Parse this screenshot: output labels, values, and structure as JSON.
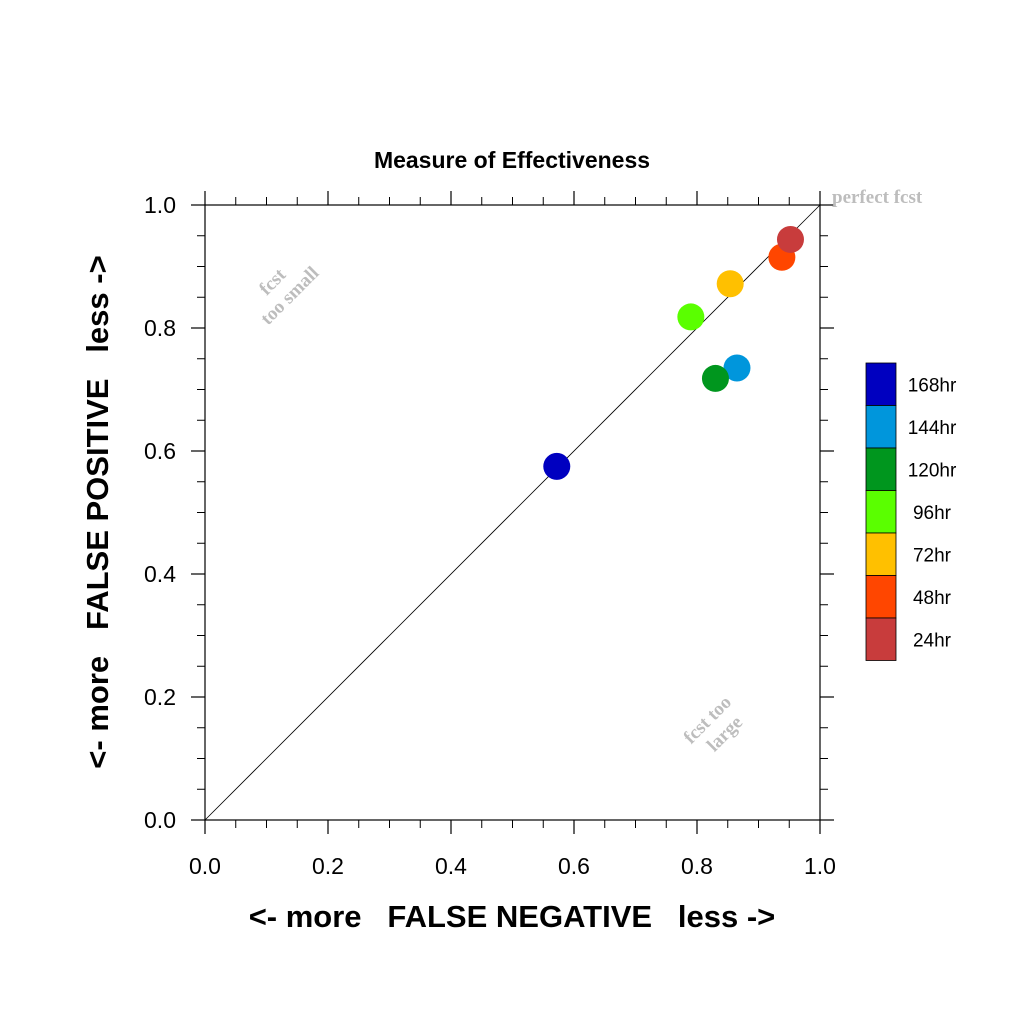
{
  "chart_data": {
    "type": "scatter",
    "title": "Measure of Effectiveness",
    "xlabel": "<- more   FALSE NEGATIVE   less ->",
    "ylabel": "<- more   FALSE POSITIVE   less ->",
    "xlim": [
      0.0,
      1.0
    ],
    "ylim": [
      0.0,
      1.0
    ],
    "x_ticks": [
      "0.0",
      "0.2",
      "0.4",
      "0.6",
      "0.8",
      "1.0"
    ],
    "y_ticks": [
      "0.0",
      "0.2",
      "0.4",
      "0.6",
      "0.8",
      "1.0"
    ],
    "grid": false,
    "reference_line": {
      "from": [
        0,
        0
      ],
      "to": [
        1,
        1
      ]
    },
    "annotations": {
      "perfect": "perfect fcst",
      "small_line1": "fcst",
      "small_line2": "too small",
      "large_line1": "fcst too",
      "large_line2": "large"
    },
    "legend_position": "right",
    "series": [
      {
        "name": "168hr",
        "color": "#0000C0",
        "x": 0.572,
        "y": 0.575
      },
      {
        "name": "144hr",
        "color": "#0096DC",
        "x": 0.865,
        "y": 0.735
      },
      {
        "name": "120hr",
        "color": "#00961E",
        "x": 0.83,
        "y": 0.718
      },
      {
        "name": "96hr",
        "color": "#5AFF00",
        "x": 0.79,
        "y": 0.818
      },
      {
        "name": "72hr",
        "color": "#FFC000",
        "x": 0.854,
        "y": 0.872
      },
      {
        "name": "48hr",
        "color": "#FF4600",
        "x": 0.938,
        "y": 0.915
      },
      {
        "name": "24hr",
        "color": "#C83C3C",
        "x": 0.952,
        "y": 0.944
      }
    ]
  }
}
